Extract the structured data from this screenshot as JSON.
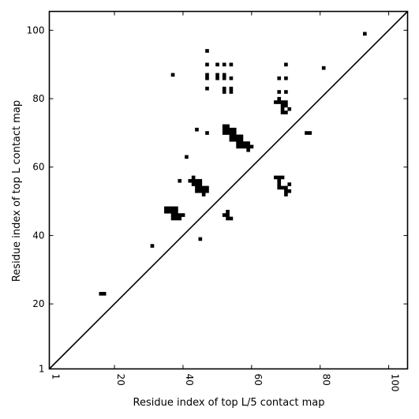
{
  "chart_data": {
    "type": "scatter",
    "xlabel": "Residue index of top L/5 contact map",
    "ylabel": "Residue index of top L contact map",
    "xlim": [
      1,
      105.5
    ],
    "ylim": [
      1,
      105.5
    ],
    "x_ticks": [
      1,
      20,
      40,
      60,
      80,
      100
    ],
    "y_ticks": [
      1,
      20,
      40,
      60,
      80,
      100
    ],
    "x_tick_labels": [
      "1",
      "20",
      "40",
      "60",
      "80",
      "100"
    ],
    "y_tick_labels": [
      "1",
      "20",
      "40",
      "60",
      "80",
      "100"
    ],
    "grid": false,
    "diagonal_line": true,
    "points": [
      [
        16,
        23
      ],
      [
        17,
        23
      ],
      [
        31,
        37
      ],
      [
        35,
        47
      ],
      [
        36,
        47
      ],
      [
        37,
        47
      ],
      [
        38,
        47
      ],
      [
        35,
        48
      ],
      [
        36,
        48
      ],
      [
        37,
        48
      ],
      [
        38,
        48
      ],
      [
        37,
        46
      ],
      [
        38,
        46
      ],
      [
        39,
        46
      ],
      [
        40,
        46
      ],
      [
        37,
        45
      ],
      [
        38,
        45
      ],
      [
        39,
        45
      ],
      [
        37,
        87
      ],
      [
        39,
        56
      ],
      [
        41,
        63
      ],
      [
        42,
        56
      ],
      [
        43,
        56
      ],
      [
        43,
        57
      ],
      [
        43,
        55
      ],
      [
        44,
        55
      ],
      [
        45,
        55
      ],
      [
        44,
        56
      ],
      [
        45,
        56
      ],
      [
        44,
        54
      ],
      [
        45,
        54
      ],
      [
        46,
        54
      ],
      [
        47,
        54
      ],
      [
        44,
        53
      ],
      [
        45,
        53
      ],
      [
        46,
        53
      ],
      [
        47,
        53
      ],
      [
        46,
        52
      ],
      [
        44,
        71
      ],
      [
        45,
        39
      ],
      [
        47,
        94
      ],
      [
        47,
        90
      ],
      [
        47,
        87
      ],
      [
        47,
        86
      ],
      [
        47,
        83
      ],
      [
        47,
        70
      ],
      [
        50,
        90
      ],
      [
        50,
        87
      ],
      [
        50,
        86
      ],
      [
        52,
        90
      ],
      [
        52,
        87
      ],
      [
        52,
        86
      ],
      [
        52,
        83
      ],
      [
        52,
        82
      ],
      [
        52,
        72
      ],
      [
        53,
        72
      ],
      [
        52,
        71
      ],
      [
        53,
        71
      ],
      [
        54,
        71
      ],
      [
        55,
        71
      ],
      [
        52,
        70
      ],
      [
        53,
        70
      ],
      [
        54,
        70
      ],
      [
        55,
        70
      ],
      [
        54,
        69
      ],
      [
        55,
        69
      ],
      [
        56,
        69
      ],
      [
        57,
        69
      ],
      [
        54,
        68
      ],
      [
        55,
        68
      ],
      [
        56,
        68
      ],
      [
        57,
        68
      ],
      [
        56,
        67
      ],
      [
        57,
        67
      ],
      [
        58,
        67
      ],
      [
        59,
        67
      ],
      [
        56,
        66
      ],
      [
        57,
        66
      ],
      [
        58,
        66
      ],
      [
        59,
        66
      ],
      [
        60,
        66
      ],
      [
        59,
        65
      ],
      [
        52,
        46
      ],
      [
        53,
        46
      ],
      [
        53,
        47
      ],
      [
        53,
        45
      ],
      [
        54,
        45
      ],
      [
        54,
        90
      ],
      [
        54,
        86
      ],
      [
        54,
        83
      ],
      [
        54,
        82
      ],
      [
        67,
        57
      ],
      [
        68,
        57
      ],
      [
        69,
        57
      ],
      [
        68,
        56
      ],
      [
        68,
        55
      ],
      [
        68,
        54
      ],
      [
        69,
        54
      ],
      [
        70,
        54
      ],
      [
        70,
        53
      ],
      [
        71,
        53
      ],
      [
        70,
        52
      ],
      [
        71,
        55
      ],
      [
        67,
        79
      ],
      [
        68,
        79
      ],
      [
        69,
        79
      ],
      [
        70,
        79
      ],
      [
        68,
        80
      ],
      [
        69,
        78
      ],
      [
        70,
        78
      ],
      [
        71,
        77
      ],
      [
        69,
        77
      ],
      [
        70,
        76
      ],
      [
        69,
        76
      ],
      [
        68,
        86
      ],
      [
        68,
        82
      ],
      [
        70,
        90
      ],
      [
        70,
        86
      ],
      [
        70,
        82
      ],
      [
        76,
        70
      ],
      [
        77,
        70
      ],
      [
        81,
        89
      ],
      [
        93,
        99
      ]
    ]
  }
}
